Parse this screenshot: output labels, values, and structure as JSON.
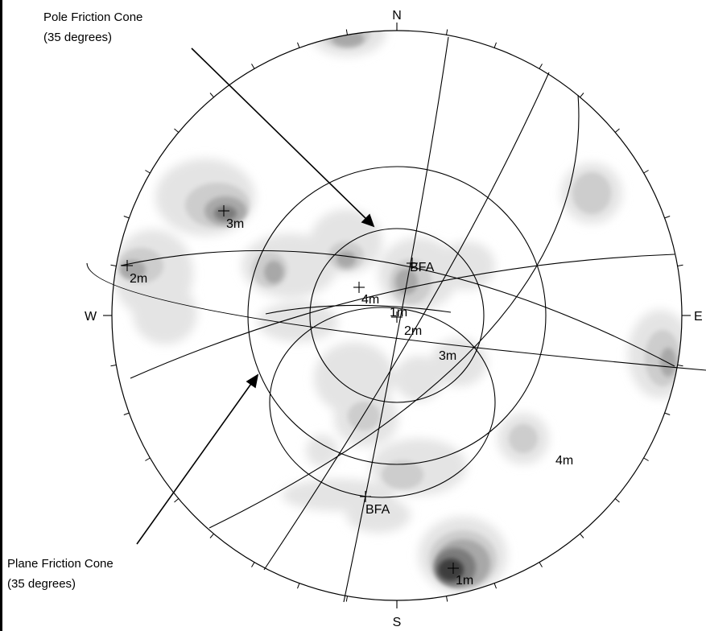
{
  "compass": {
    "north": "N",
    "south": "S",
    "east": "E",
    "west": "W"
  },
  "annotations": {
    "pole_cone_line1": "Pole Friction Cone",
    "pole_cone_line2": "(35 degrees)",
    "plane_cone_line1": "Plane Friction Cone",
    "plane_cone_line2": "(35 degrees)"
  },
  "pole_labels": {
    "p1m": "1m",
    "p2m": "2m",
    "p3m": "3m",
    "p4m": "4m"
  },
  "plane_labels": {
    "l1m": "1m",
    "l2m": "2m",
    "l3m": "3m",
    "l4m": "4m",
    "bfa_top": "BFA",
    "bfa_bottom": "BFA"
  },
  "colors": {
    "contour_light": "#e4e4e4",
    "contour_mid": "#cdcdcd",
    "contour_dark": "#a8a8a8",
    "contour_darker": "#7c7c7c",
    "contour_darkest": "#3c3c3c",
    "lines": "#000000"
  }
}
